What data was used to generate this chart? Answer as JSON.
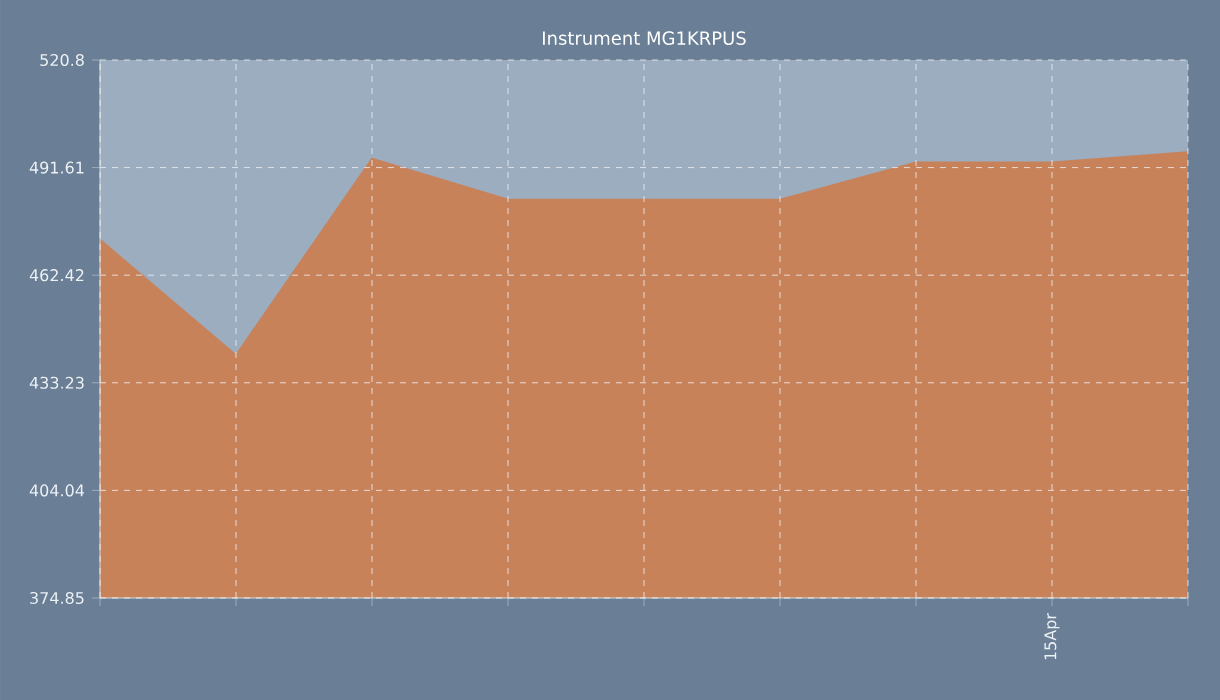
{
  "chart_data": {
    "type": "area",
    "title": "Instrument MG1KRPUS",
    "categories": [
      null,
      null,
      null,
      null,
      null,
      null,
      null,
      "15Apr",
      null
    ],
    "series": [
      {
        "color": "#c8825a",
        "values": [
          472.0,
          440.7,
          494.0,
          482.9,
          482.9,
          482.9,
          493.0,
          493.0,
          495.8
        ]
      }
    ],
    "ylim": [
      374.85,
      520.8
    ],
    "yticks": [
      374.85,
      404.04,
      433.23,
      462.42,
      491.61,
      520.8
    ],
    "grid": true,
    "marker": "none",
    "line_style": "solid"
  }
}
